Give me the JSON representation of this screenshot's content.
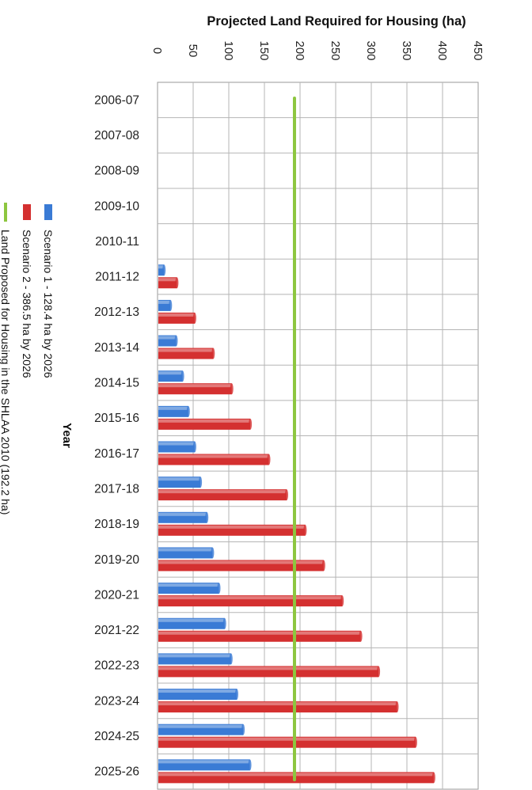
{
  "chart_data": {
    "type": "bar",
    "orientation": "horizontal",
    "title": "Projected Land Required for Housing  (ha)",
    "xlabel": "Projected Land Required for Housing  (ha)",
    "ylabel": "Year",
    "xlim": [
      0,
      450
    ],
    "x_ticks": [
      "0",
      "50",
      "100",
      "150",
      "200",
      "250",
      "300",
      "350",
      "400",
      "450"
    ],
    "categories": [
      "2006-07",
      "2007-08",
      "2008-09",
      "2009-10",
      "2010-11",
      "2011-12",
      "2012-13",
      "2013-14",
      "2014-15",
      "2015-16",
      "2016-17",
      "2017-18",
      "2018-19",
      "2019-20",
      "2020-21",
      "2021-22",
      "2022-23",
      "2023-24",
      "2024-25",
      "2025-26"
    ],
    "series": [
      {
        "name": "Scenario 1 - 128.4 ha by 2026",
        "color": "#3a7bd5",
        "values": [
          0,
          0,
          0,
          0,
          0,
          8,
          17,
          25,
          34,
          42,
          51,
          59,
          68,
          76,
          85,
          93,
          102,
          110,
          119,
          128.4
        ]
      },
      {
        "name": "Scenario 2 - 386.5 ha by 2026",
        "color": "#d43030",
        "values": [
          0,
          0,
          0,
          0,
          0,
          26,
          51,
          77,
          103,
          129,
          155,
          180,
          206,
          232,
          258,
          284,
          309,
          335,
          361,
          386.5
        ]
      }
    ],
    "reference_line": {
      "name": "Land Proposed for Housing in the SHLAA 2010 (192.2 ha)",
      "value": 192.2,
      "color": "#8dc63f"
    },
    "grid": true,
    "legend_position": "left"
  }
}
